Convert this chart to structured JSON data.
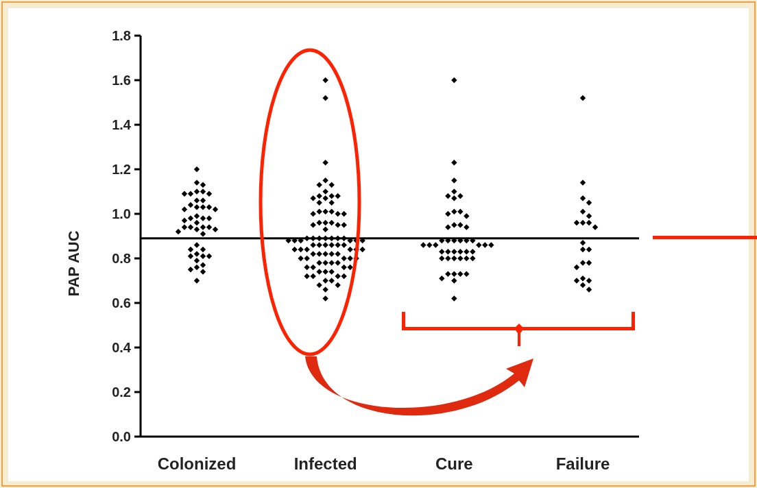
{
  "chart_data": {
    "type": "scatter",
    "ylabel": "PAP AUC",
    "categories": [
      "Colonized",
      "Infected",
      "Cure",
      "Failure"
    ],
    "series": [
      {
        "color": "#000000",
        "x": [
          "Colonized",
          "Colonized",
          "Colonized",
          "Colonized",
          "Colonized",
          "Colonized",
          "Colonized",
          "Colonized",
          "Colonized",
          "Colonized",
          "Colonized",
          "Colonized",
          "Colonized",
          "Colonized",
          "Colonized",
          "Colonized",
          "Colonized",
          "Colonized",
          "Colonized",
          "Colonized",
          "Colonized",
          "Colonized",
          "Colonized",
          "Colonized",
          "Colonized",
          "Colonized",
          "Colonized",
          "Colonized",
          "Colonized",
          "Colonized",
          "Colonized",
          "Colonized",
          "Colonized",
          "Colonized",
          "Colonized",
          "Colonized",
          "Colonized",
          "Colonized",
          "Colonized",
          "Colonized",
          "Colonized",
          "Colonized",
          "Colonized"
        ],
        "values": [
          1.2,
          1.14,
          1.13,
          1.1,
          1.1,
          1.09,
          1.09,
          1.09,
          1.06,
          1.06,
          1.04,
          1.03,
          1.03,
          1.03,
          1.02,
          1.02,
          0.99,
          0.98,
          0.98,
          0.98,
          0.97,
          0.96,
          0.94,
          0.94,
          0.94,
          0.94,
          0.93,
          0.93,
          0.92,
          0.91,
          0.86,
          0.84,
          0.84,
          0.82,
          0.81,
          0.81,
          0.81,
          0.79,
          0.77,
          0.76,
          0.75,
          0.74,
          0.7
        ]
      },
      {
        "color": "#000000",
        "x": [
          "Infected",
          "Infected",
          "Infected",
          "Infected",
          "Infected",
          "Infected",
          "Infected",
          "Infected",
          "Infected",
          "Infected",
          "Infected",
          "Infected",
          "Infected",
          "Infected",
          "Infected",
          "Infected",
          "Infected",
          "Infected",
          "Infected",
          "Infected",
          "Infected",
          "Infected",
          "Infected",
          "Infected",
          "Infected",
          "Infected",
          "Infected",
          "Infected",
          "Infected",
          "Infected",
          "Infected",
          "Infected",
          "Infected",
          "Infected",
          "Infected",
          "Infected",
          "Infected",
          "Infected",
          "Infected",
          "Infected",
          "Infected",
          "Infected",
          "Infected",
          "Infected",
          "Infected",
          "Infected",
          "Infected",
          "Infected",
          "Infected",
          "Infected",
          "Infected",
          "Infected",
          "Infected",
          "Infected",
          "Infected",
          "Infected",
          "Infected",
          "Infected",
          "Infected",
          "Infected",
          "Infected",
          "Infected",
          "Infected",
          "Infected",
          "Infected",
          "Infected",
          "Infected",
          "Infected",
          "Infected",
          "Infected",
          "Infected",
          "Infected",
          "Infected",
          "Infected",
          "Infected",
          "Infected",
          "Infected",
          "Infected",
          "Infected",
          "Infected",
          "Infected",
          "Infected",
          "Infected"
        ],
        "values": [
          1.6,
          1.52,
          1.23,
          1.15,
          1.13,
          1.13,
          1.1,
          1.08,
          1.08,
          1.08,
          1.07,
          1.07,
          1.05,
          1.05,
          1.01,
          1.01,
          1.01,
          1.0,
          1.0,
          1.0,
          0.96,
          0.96,
          0.96,
          0.95,
          0.95,
          0.95,
          0.93,
          0.89,
          0.89,
          0.89,
          0.89,
          0.89,
          0.89,
          0.89,
          0.88,
          0.88,
          0.88,
          0.88,
          0.88,
          0.88,
          0.86,
          0.86,
          0.86,
          0.86,
          0.86,
          0.86,
          0.84,
          0.84,
          0.84,
          0.84,
          0.84,
          0.84,
          0.82,
          0.82,
          0.82,
          0.82,
          0.82,
          0.8,
          0.8,
          0.8,
          0.8,
          0.8,
          0.78,
          0.78,
          0.78,
          0.78,
          0.76,
          0.76,
          0.76,
          0.76,
          0.74,
          0.74,
          0.74,
          0.72,
          0.72,
          0.72,
          0.72,
          0.7,
          0.7,
          0.68,
          0.68,
          0.66,
          0.62
        ]
      },
      {
        "color": "#000000",
        "x": [
          "Cure",
          "Cure",
          "Cure",
          "Cure",
          "Cure",
          "Cure",
          "Cure",
          "Cure",
          "Cure",
          "Cure",
          "Cure",
          "Cure",
          "Cure",
          "Cure",
          "Cure",
          "Cure",
          "Cure",
          "Cure",
          "Cure",
          "Cure",
          "Cure",
          "Cure",
          "Cure",
          "Cure",
          "Cure",
          "Cure",
          "Cure",
          "Cure",
          "Cure",
          "Cure",
          "Cure",
          "Cure",
          "Cure",
          "Cure",
          "Cure",
          "Cure",
          "Cure",
          "Cure",
          "Cure",
          "Cure",
          "Cure",
          "Cure",
          "Cure",
          "Cure",
          "Cure",
          "Cure"
        ],
        "values": [
          1.6,
          1.23,
          1.15,
          1.1,
          1.08,
          1.08,
          1.07,
          1.01,
          1.01,
          1.0,
          0.99,
          0.95,
          0.95,
          0.94,
          0.94,
          0.88,
          0.88,
          0.88,
          0.88,
          0.88,
          0.88,
          0.86,
          0.86,
          0.86,
          0.86,
          0.86,
          0.86,
          0.83,
          0.83,
          0.83,
          0.83,
          0.83,
          0.83,
          0.8,
          0.8,
          0.8,
          0.8,
          0.8,
          0.8,
          0.73,
          0.73,
          0.73,
          0.73,
          0.71,
          0.7,
          0.62
        ]
      },
      {
        "color": "#000000",
        "x": [
          "Failure",
          "Failure",
          "Failure",
          "Failure",
          "Failure",
          "Failure",
          "Failure",
          "Failure",
          "Failure",
          "Failure",
          "Failure",
          "Failure",
          "Failure",
          "Failure",
          "Failure",
          "Failure",
          "Failure",
          "Failure",
          "Failure",
          "Failure",
          "Failure"
        ],
        "values": [
          1.52,
          1.14,
          1.07,
          1.05,
          1.01,
          0.99,
          0.96,
          0.96,
          0.96,
          0.94,
          0.87,
          0.84,
          0.84,
          0.78,
          0.78,
          0.76,
          0.71,
          0.7,
          0.7,
          0.68,
          0.66
        ]
      }
    ],
    "marker": "diamond",
    "ylim": [
      0,
      1.8
    ],
    "yticks": [
      {
        "value": 0,
        "label": "0.0"
      },
      0.2,
      0.4,
      0.6,
      0.8,
      {
        "value": 1,
        "label": "1.0"
      },
      1.2,
      1.4,
      1.6,
      1.8
    ],
    "ref_lines": [
      {
        "axis": "y",
        "value": 0.89,
        "color": "#000000"
      }
    ],
    "grid": false
  }
}
